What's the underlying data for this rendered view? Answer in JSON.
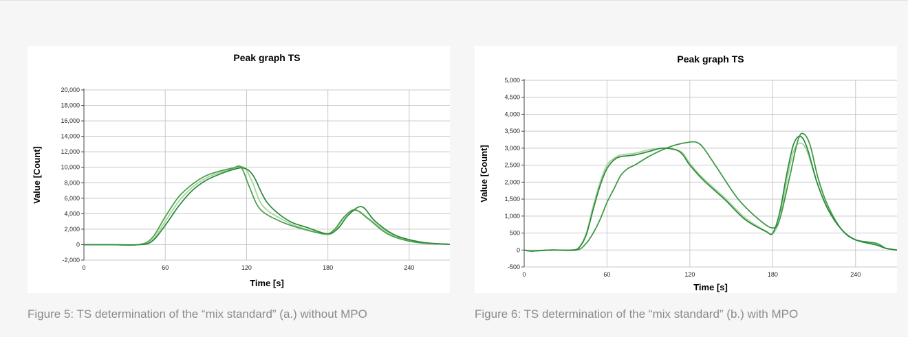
{
  "figures": [
    {
      "caption": "Figure 5: TS determination of the “mix standard” (a.) without MPO"
    },
    {
      "caption": "Figure 6: TS determination of the “mix standard” (b.) with MPO"
    }
  ],
  "colors": {
    "series_dark": "#2e8b3e",
    "series_mid": "#4aa24f",
    "series_light": "#a6d49c"
  },
  "chart_data": [
    {
      "type": "line",
      "title": "Peak graph TS",
      "xlabel": "Time [s]",
      "ylabel": "Value [Count]",
      "xlim": [
        0,
        270
      ],
      "ylim": [
        -2000,
        20000
      ],
      "xticks": [
        0,
        60,
        120,
        180,
        240
      ],
      "yticks": [
        -2000,
        0,
        2000,
        4000,
        6000,
        8000,
        10000,
        12000,
        14000,
        16000,
        18000,
        20000
      ],
      "ytick_labels": [
        "-2,000",
        "0",
        "2,000",
        "4,000",
        "6,000",
        "8,000",
        "10,000",
        "12,000",
        "14,000",
        "16,000",
        "18,000",
        "20,000"
      ],
      "xtick_labels": [
        "0",
        "60",
        "120",
        "180",
        "240"
      ],
      "grid": true,
      "series": [
        {
          "color": "#2e8b3e",
          "x": [
            0,
            20,
            40,
            50,
            60,
            70,
            80,
            90,
            100,
            110,
            118,
            125,
            135,
            150,
            165,
            180,
            188,
            195,
            205,
            215,
            230,
            250,
            270
          ],
          "y": [
            0,
            0,
            0,
            400,
            2500,
            5000,
            7000,
            8300,
            9100,
            9700,
            9900,
            8900,
            5500,
            3200,
            2200,
            1400,
            2200,
            3800,
            4900,
            3000,
            1200,
            300,
            50
          ]
        },
        {
          "color": "#4aa24f",
          "x": [
            0,
            20,
            40,
            50,
            60,
            70,
            80,
            90,
            100,
            110,
            116,
            122,
            130,
            145,
            160,
            178,
            185,
            192,
            200,
            210,
            225,
            245,
            270
          ],
          "y": [
            0,
            0,
            0,
            800,
            3600,
            6200,
            7800,
            8900,
            9500,
            9900,
            10000,
            7500,
            4600,
            3000,
            2100,
            1400,
            2000,
            3600,
            4500,
            3300,
            1300,
            300,
            50
          ]
        },
        {
          "color": "#a6d49c",
          "x": [
            0,
            20,
            40,
            50,
            60,
            70,
            80,
            90,
            100,
            110,
            118,
            124,
            132,
            148,
            162,
            180,
            187,
            194,
            202,
            212,
            228,
            248,
            270
          ],
          "y": [
            0,
            0,
            0,
            500,
            3000,
            5600,
            7400,
            8600,
            9300,
            9800,
            10000,
            8200,
            5000,
            3100,
            2100,
            1300,
            2300,
            3900,
            4400,
            3100,
            1200,
            300,
            50
          ]
        }
      ]
    },
    {
      "type": "line",
      "title": "Peak graph TS",
      "xlabel": "Time [s]",
      "ylabel": "Value [Count]",
      "xlim": [
        0,
        270
      ],
      "ylim": [
        -500,
        5000
      ],
      "xticks": [
        0,
        60,
        120,
        180,
        240
      ],
      "yticks": [
        -500,
        0,
        500,
        1000,
        1500,
        2000,
        2500,
        3000,
        3500,
        4000,
        4500,
        5000
      ],
      "ytick_labels": [
        "-500",
        "0",
        "500",
        "1,000",
        "1,500",
        "2,000",
        "2,500",
        "3,000",
        "3,500",
        "4,000",
        "4,500",
        "5,000"
      ],
      "xtick_labels": [
        "0",
        "60",
        "120",
        "180",
        "240"
      ],
      "grid": true,
      "series": [
        {
          "color": "#2e8b3e",
          "x": [
            0,
            5,
            20,
            35,
            40,
            45,
            50,
            55,
            60,
            65,
            70,
            80,
            90,
            100,
            110,
            115,
            120,
            130,
            145,
            160,
            175,
            180,
            185,
            190,
            195,
            200,
            205,
            212,
            220,
            230,
            240,
            255,
            262,
            270
          ],
          "y": [
            0,
            -30,
            0,
            0,
            80,
            450,
            1200,
            1900,
            2400,
            2650,
            2750,
            2800,
            2900,
            3000,
            2950,
            2800,
            2500,
            2050,
            1500,
            900,
            550,
            500,
            1100,
            2200,
            3100,
            3350,
            3000,
            2000,
            1200,
            600,
            300,
            150,
            50,
            0
          ]
        },
        {
          "color": "#3f9a47",
          "x": [
            0,
            5,
            20,
            38,
            45,
            50,
            55,
            60,
            65,
            70,
            75,
            80,
            90,
            100,
            110,
            120,
            125,
            130,
            140,
            155,
            170,
            180,
            185,
            192,
            198,
            202,
            207,
            213,
            220,
            230,
            240,
            255,
            262,
            270
          ],
          "y": [
            0,
            -30,
            0,
            0,
            200,
            500,
            900,
            1400,
            1800,
            2200,
            2400,
            2500,
            2750,
            2950,
            3100,
            3180,
            3170,
            3000,
            2400,
            1500,
            900,
            650,
            900,
            2100,
            3200,
            3430,
            3100,
            2100,
            1300,
            600,
            300,
            200,
            50,
            0
          ]
        },
        {
          "color": "#a6d49c",
          "x": [
            0,
            5,
            20,
            35,
            40,
            45,
            50,
            55,
            60,
            65,
            70,
            80,
            90,
            100,
            110,
            115,
            120,
            130,
            145,
            160,
            175,
            180,
            185,
            190,
            195,
            200,
            205,
            212,
            220,
            230,
            240,
            255,
            262,
            270
          ],
          "y": [
            0,
            -20,
            0,
            0,
            100,
            500,
            1300,
            2000,
            2500,
            2700,
            2800,
            2850,
            2950,
            3000,
            2950,
            2850,
            2550,
            2100,
            1550,
            950,
            560,
            480,
            900,
            2000,
            2900,
            3150,
            2900,
            2000,
            1200,
            600,
            300,
            150,
            50,
            0
          ]
        }
      ]
    }
  ]
}
